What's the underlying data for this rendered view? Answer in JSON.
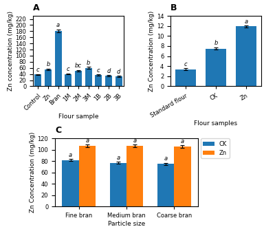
{
  "chart_data": [
    {
      "type": "bar",
      "title": "A",
      "categories": [
        "Control",
        "Zn",
        "Bran",
        "1M",
        "2M",
        "3M",
        "1B",
        "2B",
        "3B"
      ],
      "values": [
        38,
        55,
        181,
        40,
        50,
        60,
        37,
        35,
        32
      ],
      "errors": [
        2,
        3,
        5,
        2,
        3,
        4,
        2,
        2,
        2
      ],
      "letters": [
        "c",
        "b",
        "a",
        "c",
        "bc",
        "b",
        "c",
        "d",
        "d"
      ],
      "xlabel": "Flour sample",
      "ylabel": "Zn concentration (mg/kg)",
      "ylim": [
        0,
        230
      ],
      "yticks": [
        0,
        20,
        40,
        60,
        80,
        100,
        120,
        140,
        160,
        180,
        200,
        220
      ]
    },
    {
      "type": "bar",
      "title": "B",
      "categories": [
        "Standard flour",
        "CK",
        "Zn"
      ],
      "values": [
        3.4,
        7.5,
        11.9
      ],
      "errors": [
        0.15,
        0.25,
        0.15
      ],
      "letters": [
        "c",
        "b",
        "a"
      ],
      "xlabel": "Flour samples",
      "ylabel": "Zn Concentration (mg/kg)",
      "ylim": [
        0,
        14
      ],
      "yticks": [
        0,
        2,
        4,
        6,
        8,
        10,
        12,
        14
      ]
    },
    {
      "type": "bar",
      "title": "C",
      "categories": [
        "Fine bran",
        "Medium bran",
        "Coarse bran"
      ],
      "series": [
        {
          "name": "CK",
          "values": [
            82,
            77,
            75
          ],
          "errors": [
            2,
            2,
            2
          ],
          "letters": [
            "a",
            "a",
            "a"
          ]
        },
        {
          "name": "Zn",
          "values": [
            107,
            107,
            106
          ],
          "errors": [
            2,
            2,
            2
          ],
          "letters": [
            "a",
            "a",
            "a"
          ]
        }
      ],
      "xlabel": "Particle size",
      "ylabel": "Zn Concentration (mg/kg)",
      "ylim": [
        0,
        120
      ],
      "yticks": [
        0,
        20,
        40,
        60,
        80,
        100,
        120
      ],
      "legend": "upper right"
    }
  ]
}
